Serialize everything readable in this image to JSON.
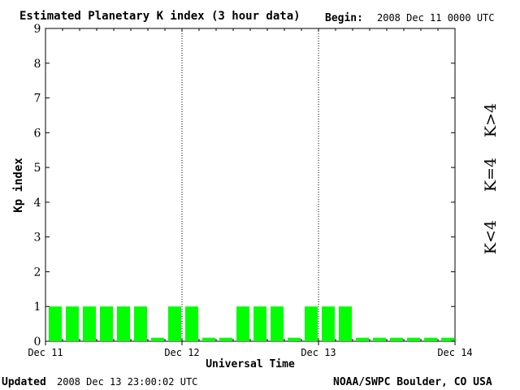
{
  "chart_data": {
    "type": "bar",
    "title": "Estimated Planetary K index (3 hour data)",
    "begin_label": "Begin:",
    "begin_value": "2008 Dec 11 0000 UTC",
    "ylabel": "Kp index",
    "xlabel": "Universal Time",
    "ylim": [
      0,
      9
    ],
    "yticks": [
      "0",
      "1",
      "2",
      "3",
      "4",
      "5",
      "6",
      "7",
      "8",
      "9"
    ],
    "xlim": [
      0,
      24
    ],
    "xtick_labels": [
      "Dec 11",
      "Dec 12",
      "Dec 13",
      "Dec 14"
    ],
    "day_dividers": [
      8,
      16
    ],
    "grid": false,
    "bar_color": "#00ff00",
    "values": [
      1,
      1,
      1,
      1,
      1,
      1,
      0.1,
      1,
      1,
      0.1,
      0.1,
      1,
      1,
      1,
      0.1,
      1,
      1,
      1,
      0.1,
      0.1,
      0.1,
      0.1,
      0.1,
      0.1
    ],
    "legend": [
      {
        "label": "K>4",
        "color": "#ff2200"
      },
      {
        "label": "K=4",
        "color": "#ffdd00"
      },
      {
        "label": "K<4",
        "color": "#22ee22"
      }
    ],
    "legend_placement": "right"
  },
  "footer": {
    "updated_label": "Updated",
    "updated_value": "2008 Dec 13 23:00:02 UTC",
    "source": "NOAA/SWPC Boulder, CO USA"
  }
}
